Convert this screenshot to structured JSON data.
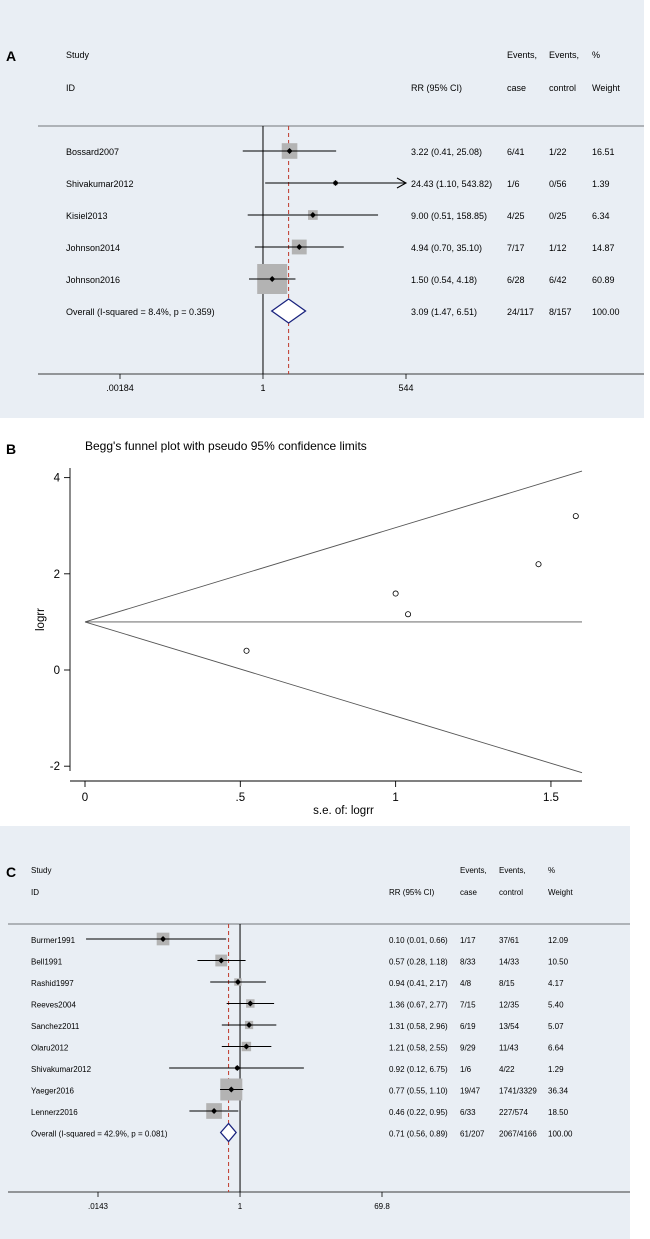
{
  "chart_data": [
    {
      "panel": "A",
      "type": "forest",
      "headers": {
        "study": "Study",
        "id": "ID",
        "rr": "RR (95% CI)",
        "events1_top": "Events,",
        "events1_bottom": "case",
        "events2_top": "Events,",
        "events2_bottom": "control",
        "weight_top": "%",
        "weight_bottom": "Weight"
      },
      "axis": {
        "min": 0.00184,
        "max": 544,
        "null_value": 1,
        "tick_labels": [
          ".00184",
          "1",
          "544"
        ],
        "pooled_line": 3.09
      },
      "studies": [
        {
          "name": "Bossard2007",
          "rr": 3.22,
          "lo": 0.41,
          "hi": 25.08,
          "rr_text": "3.22 (0.41, 25.08)",
          "case": "6/41",
          "control": "1/22",
          "weight": 16.51,
          "weight_text": "16.51"
        },
        {
          "name": "Shivakumar2012",
          "rr": 24.43,
          "lo": 1.1,
          "hi": 543.82,
          "rr_text": "24.43 (1.10, 543.82)",
          "case": "1/6",
          "control": "0/56",
          "weight": 1.39,
          "weight_text": "1.39",
          "arrow": true
        },
        {
          "name": "Kisiel2013",
          "rr": 9.0,
          "lo": 0.51,
          "hi": 158.85,
          "rr_text": "9.00 (0.51, 158.85)",
          "case": "4/25",
          "control": "0/25",
          "weight": 6.34,
          "weight_text": "6.34"
        },
        {
          "name": "Johnson2014",
          "rr": 4.94,
          "lo": 0.7,
          "hi": 35.1,
          "rr_text": "4.94 (0.70, 35.10)",
          "case": "7/17",
          "control": "1/12",
          "weight": 14.87,
          "weight_text": "14.87"
        },
        {
          "name": "Johnson2016",
          "rr": 1.5,
          "lo": 0.54,
          "hi": 4.18,
          "rr_text": "1.50 (0.54, 4.18)",
          "case": "6/28",
          "control": "6/42",
          "weight": 60.89,
          "weight_text": "60.89"
        }
      ],
      "overall": {
        "name": "Overall  (I-squared = 8.4%, p = 0.359)",
        "rr": 3.09,
        "lo": 1.47,
        "hi": 6.51,
        "rr_text": "3.09 (1.47, 6.51)",
        "case": "24/117",
        "control": "8/157",
        "weight_text": "100.00"
      }
    },
    {
      "panel": "B",
      "type": "scatter",
      "title": "Begg's funnel plot with pseudo 95% confidence limits",
      "xlabel": "s.e. of: logrr",
      "ylabel": "logrr",
      "xlim": [
        0,
        1.6
      ],
      "ylim": [
        -2.1,
        4.2
      ],
      "x_ticks": [
        0,
        0.5,
        1,
        1.5
      ],
      "x_tick_labels": [
        "0",
        ".5",
        "1",
        "1.5"
      ],
      "y_ticks": [
        -2,
        0,
        2,
        4
      ],
      "y_tick_labels": [
        "-2",
        "0",
        "2",
        "4"
      ],
      "pooled_logrr": 1.0,
      "points": [
        {
          "x": 0.52,
          "y": 0.4
        },
        {
          "x": 1.0,
          "y": 1.59
        },
        {
          "x": 1.04,
          "y": 1.16
        },
        {
          "x": 1.46,
          "y": 2.2
        },
        {
          "x": 1.58,
          "y": 3.2
        }
      ]
    },
    {
      "panel": "C",
      "type": "forest",
      "headers": {
        "study": "Study",
        "id": "ID",
        "rr": "RR (95% CI)",
        "events1_top": "Events,",
        "events1_bottom": "case",
        "events2_top": "Events,",
        "events2_bottom": "control",
        "weight_top": "%",
        "weight_bottom": "Weight"
      },
      "axis": {
        "min": 0.0143,
        "max": 69.8,
        "null_value": 1,
        "tick_labels": [
          ".0143",
          "1",
          "69.8"
        ],
        "pooled_line": 0.71
      },
      "studies": [
        {
          "name": "Burmer1991",
          "rr": 0.1,
          "lo": 0.01,
          "hi": 0.66,
          "rr_text": "0.10 (0.01, 0.66)",
          "case": "1/17",
          "control": "37/61",
          "weight": 12.09,
          "weight_text": "12.09"
        },
        {
          "name": "Bell1991",
          "rr": 0.57,
          "lo": 0.28,
          "hi": 1.18,
          "rr_text": "0.57 (0.28, 1.18)",
          "case": "8/33",
          "control": "14/33",
          "weight": 10.5,
          "weight_text": "10.50"
        },
        {
          "name": "Rashid1997",
          "rr": 0.94,
          "lo": 0.41,
          "hi": 2.17,
          "rr_text": "0.94 (0.41, 2.17)",
          "case": "4/8",
          "control": "8/15",
          "weight": 4.17,
          "weight_text": "4.17"
        },
        {
          "name": "Reeves2004",
          "rr": 1.36,
          "lo": 0.67,
          "hi": 2.77,
          "rr_text": "1.36 (0.67, 2.77)",
          "case": "7/15",
          "control": "12/35",
          "weight": 5.4,
          "weight_text": "5.40"
        },
        {
          "name": "Sanchez2011",
          "rr": 1.31,
          "lo": 0.58,
          "hi": 2.96,
          "rr_text": "1.31 (0.58, 2.96)",
          "case": "6/19",
          "control": "13/54",
          "weight": 5.07,
          "weight_text": "5.07"
        },
        {
          "name": "Olaru2012",
          "rr": 1.21,
          "lo": 0.58,
          "hi": 2.55,
          "rr_text": "1.21 (0.58, 2.55)",
          "case": "9/29",
          "control": "11/43",
          "weight": 6.64,
          "weight_text": "6.64"
        },
        {
          "name": "Shivakumar2012",
          "rr": 0.92,
          "lo": 0.12,
          "hi": 6.75,
          "rr_text": "0.92 (0.12, 6.75)",
          "case": "1/6",
          "control": "4/22",
          "weight": 1.29,
          "weight_text": "1.29"
        },
        {
          "name": "Yaeger2016",
          "rr": 0.77,
          "lo": 0.55,
          "hi": 1.1,
          "rr_text": "0.77 (0.55, 1.10)",
          "case": "19/47",
          "control": "1741/3329",
          "weight": 36.34,
          "weight_text": "36.34"
        },
        {
          "name": "Lennerz2016",
          "rr": 0.46,
          "lo": 0.22,
          "hi": 0.95,
          "rr_text": "0.46 (0.22, 0.95)",
          "case": "6/33",
          "control": "227/574",
          "weight": 18.5,
          "weight_text": "18.50"
        }
      ],
      "overall": {
        "name": "Overall  (I-squared = 42.9%, p = 0.081)",
        "rr": 0.71,
        "lo": 0.56,
        "hi": 0.89,
        "rr_text": "0.71 (0.56, 0.89)",
        "case": "61/207",
        "control": "2067/4166",
        "weight_text": "100.00"
      }
    }
  ],
  "labels": {
    "a": "A",
    "b": "B",
    "c": "C"
  }
}
